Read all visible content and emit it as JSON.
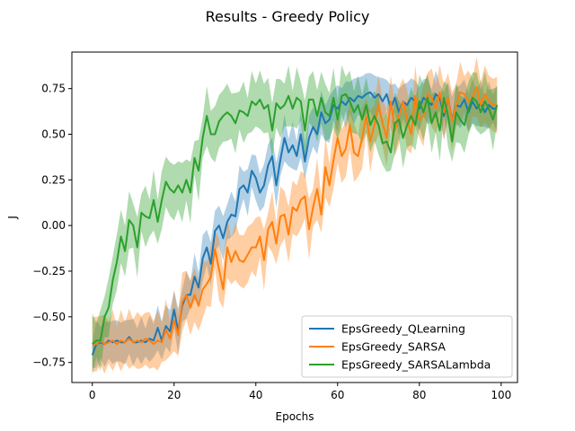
{
  "chart_data": {
    "type": "line",
    "title": "Results - Greedy Policy",
    "xlabel": "Epochs",
    "ylabel": "J",
    "xlim": [
      -5,
      104
    ],
    "ylim": [
      -0.86,
      0.95
    ],
    "xticks": [
      0,
      20,
      40,
      60,
      80,
      100
    ],
    "yticks": [
      -0.75,
      -0.5,
      -0.25,
      0.0,
      0.25,
      0.5,
      0.75
    ],
    "ytick_labels": [
      "−0.75",
      "−0.50",
      "−0.25",
      "0.00",
      "0.25",
      "0.50",
      "0.75"
    ],
    "xtick_labels": [
      "0",
      "20",
      "40",
      "60",
      "80",
      "100"
    ],
    "grid": false,
    "legend_position": "lower-right",
    "series": [
      {
        "name": "EpsGreedy_QLearning",
        "color": "#1f77b4",
        "band_alpha": 0.35,
        "band_width": 0.1,
        "values": [
          -0.71,
          -0.65,
          -0.64,
          -0.65,
          -0.63,
          -0.64,
          -0.63,
          -0.64,
          -0.64,
          -0.61,
          -0.64,
          -0.64,
          -0.63,
          -0.64,
          -0.62,
          -0.63,
          -0.56,
          -0.63,
          -0.55,
          -0.58,
          -0.46,
          -0.58,
          -0.44,
          -0.38,
          -0.38,
          -0.28,
          -0.34,
          -0.18,
          -0.12,
          -0.21,
          -0.03,
          0.0,
          -0.07,
          0.02,
          0.06,
          0.05,
          0.2,
          0.22,
          0.18,
          0.3,
          0.26,
          0.18,
          0.22,
          0.33,
          0.38,
          0.22,
          0.36,
          0.48,
          0.4,
          0.44,
          0.38,
          0.5,
          0.35,
          0.48,
          0.54,
          0.5,
          0.62,
          0.56,
          0.58,
          0.66,
          0.64,
          0.68,
          0.66,
          0.7,
          0.68,
          0.71,
          0.7,
          0.72,
          0.73,
          0.7,
          0.72,
          0.68,
          0.72,
          0.64,
          0.7,
          0.62,
          0.68,
          0.66,
          0.7,
          0.68,
          0.64,
          0.7,
          0.68,
          0.66,
          0.72,
          0.7,
          0.6,
          0.7,
          0.58,
          0.66,
          0.65,
          0.69,
          0.62,
          0.68,
          0.64,
          0.67,
          0.62,
          0.66,
          0.64,
          0.64
        ]
      },
      {
        "name": "EpsGreedy_SARSA",
        "color": "#ff7f0e",
        "band_alpha": 0.38,
        "band_width": 0.13,
        "values": [
          -0.65,
          -0.65,
          -0.63,
          -0.65,
          -0.64,
          -0.63,
          -0.65,
          -0.63,
          -0.64,
          -0.62,
          -0.64,
          -0.63,
          -0.64,
          -0.62,
          -0.63,
          -0.65,
          -0.63,
          -0.64,
          -0.57,
          -0.62,
          -0.52,
          -0.6,
          -0.42,
          -0.38,
          -0.45,
          -0.38,
          -0.44,
          -0.35,
          -0.32,
          -0.28,
          -0.13,
          -0.24,
          -0.35,
          -0.12,
          -0.2,
          -0.14,
          -0.19,
          -0.2,
          -0.16,
          -0.12,
          -0.12,
          -0.06,
          -0.19,
          -0.02,
          0.02,
          -0.1,
          0.05,
          0.06,
          -0.05,
          0.1,
          0.08,
          0.14,
          0.16,
          -0.02,
          0.1,
          0.2,
          0.06,
          0.32,
          0.22,
          0.36,
          0.48,
          0.38,
          0.42,
          0.55,
          0.4,
          0.38,
          0.48,
          0.6,
          0.46,
          0.55,
          0.66,
          0.56,
          0.48,
          0.68,
          0.52,
          0.6,
          0.68,
          0.58,
          0.5,
          0.71,
          0.58,
          0.6,
          0.72,
          0.7,
          0.64,
          0.73,
          0.62,
          0.7,
          0.57,
          0.66,
          0.73,
          0.72,
          0.68,
          0.7,
          0.76,
          0.66,
          0.72,
          0.68,
          0.66,
          0.66
        ]
      },
      {
        "name": "EpsGreedy_SARSALambda",
        "color": "#2ca02c",
        "band_alpha": 0.38,
        "band_width": 0.13,
        "values": [
          -0.65,
          -0.63,
          -0.63,
          -0.5,
          -0.45,
          -0.3,
          -0.2,
          -0.06,
          -0.14,
          0.03,
          0.0,
          -0.12,
          0.07,
          0.05,
          0.04,
          0.14,
          0.02,
          0.14,
          0.24,
          0.2,
          0.18,
          0.22,
          0.18,
          0.25,
          0.18,
          0.37,
          0.3,
          0.48,
          0.6,
          0.5,
          0.5,
          0.57,
          0.6,
          0.62,
          0.6,
          0.56,
          0.63,
          0.62,
          0.6,
          0.68,
          0.66,
          0.69,
          0.64,
          0.66,
          0.52,
          0.67,
          0.64,
          0.66,
          0.71,
          0.64,
          0.7,
          0.68,
          0.52,
          0.69,
          0.69,
          0.6,
          0.7,
          0.62,
          0.6,
          0.7,
          0.58,
          0.71,
          0.72,
          0.68,
          0.62,
          0.66,
          0.58,
          0.66,
          0.55,
          0.6,
          0.55,
          0.45,
          0.46,
          0.4,
          0.56,
          0.58,
          0.48,
          0.55,
          0.6,
          0.55,
          0.68,
          0.62,
          0.7,
          0.56,
          0.62,
          0.52,
          0.7,
          0.6,
          0.46,
          0.62,
          0.58,
          0.55,
          0.64,
          0.7,
          0.68,
          0.62,
          0.68,
          0.64,
          0.58,
          0.66
        ]
      }
    ]
  }
}
